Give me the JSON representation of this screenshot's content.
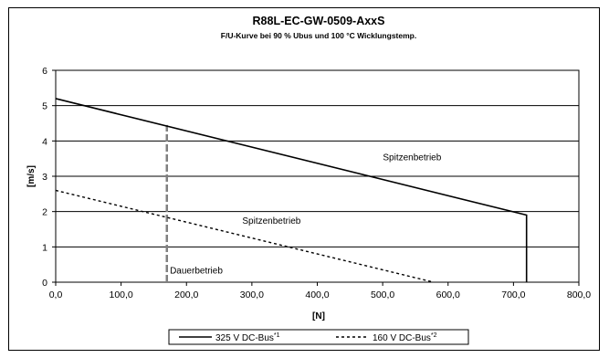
{
  "chart_data": {
    "type": "line",
    "title": "R88L-EC-GW-0509-AxxS",
    "subtitle": "F/U-Kurve bei 90 % Ubus und 100 °C Wicklungstemp.",
    "xlabel": "[N]",
    "ylabel": "[m/s]",
    "xlim": [
      0,
      800
    ],
    "ylim": [
      0,
      6
    ],
    "x_ticks": [
      0,
      100,
      200,
      300,
      400,
      500,
      600,
      700,
      800
    ],
    "x_tick_labels": [
      "0,0",
      "100,0",
      "200,0",
      "300,0",
      "400,0",
      "500,0",
      "600,0",
      "700,0",
      "800,0"
    ],
    "y_ticks": [
      0,
      1,
      2,
      3,
      4,
      5,
      6
    ],
    "y_tick_labels": [
      "0",
      "1",
      "2",
      "3",
      "4",
      "5",
      "6"
    ],
    "grid": "horizontal",
    "legend_position": "bottom",
    "series": [
      {
        "name": "325 V DC-Bus",
        "legend_label": "325 V DC-Bus",
        "legend_sup": "*1",
        "style": "solid",
        "color": "#000000",
        "x": [
          0,
          720,
          720
        ],
        "y": [
          5.2,
          1.9,
          0
        ]
      },
      {
        "name": "160 V DC-Bus",
        "legend_label": "160 V DC-Bus",
        "legend_sup": "*2",
        "style": "dotted",
        "color": "#000000",
        "x": [
          0,
          578
        ],
        "y": [
          2.6,
          0
        ]
      }
    ],
    "reference_lines": [
      {
        "style": "dashed",
        "color": "#808080",
        "x": 170,
        "y0": 0,
        "y1": 4.45
      }
    ],
    "annotations": [
      {
        "text": "Spitzenbetrieb",
        "x": 545,
        "y": 3.45
      },
      {
        "text": "Spitzenbetrieb",
        "x": 330,
        "y": 1.65
      },
      {
        "text": "Dauerbetrieb",
        "x": 215,
        "y": 0.25
      }
    ]
  }
}
